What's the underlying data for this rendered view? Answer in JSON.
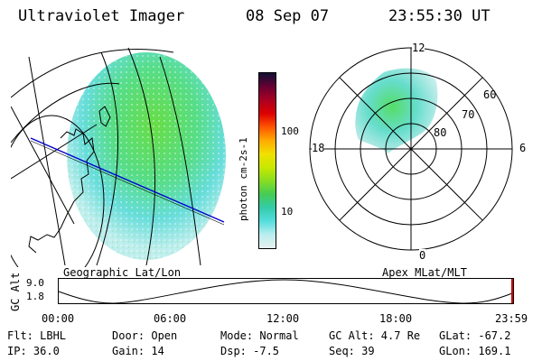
{
  "header": {
    "title": "Ultraviolet Imager",
    "date": "08 Sep 07",
    "time": "23:55:30 UT"
  },
  "geographic_panel": {
    "label": "Geographic Lat/Lon"
  },
  "polar_panel": {
    "label": "Apex MLat/MLT",
    "mlt_labels": {
      "top": "12",
      "left": "18",
      "right": "6",
      "bottom": "0"
    },
    "mlat_labels": [
      "60",
      "70",
      "80"
    ]
  },
  "colorbar": {
    "unit": "photon cm-2s-1",
    "ticks": [
      "100",
      "10"
    ],
    "colors": [
      "#111133",
      "#660033",
      "#aa0022",
      "#dd0000",
      "#ff5500",
      "#ffaa00",
      "#f0e000",
      "#c8e800",
      "#88dd22",
      "#44cc55",
      "#33ccaa",
      "#55dddd",
      "#bbeeee",
      "#e8f0f0"
    ]
  },
  "altitude_plot": {
    "ylabel": "GC Alt",
    "yticks": [
      "9.0",
      "1.8"
    ],
    "xticks": [
      "00:00",
      "06:00",
      "12:00",
      "18:00",
      "23:59"
    ],
    "marker_color": "#cc0000"
  },
  "footer": {
    "flt": "Flt: LBHL",
    "door": "Door: Open",
    "mode": "Mode: Normal",
    "gc_alt": "GC Alt: 4.7 Re",
    "glat": "GLat: -67.2",
    "ip": "IP: 36.0",
    "gain": "Gain: 14",
    "dsp": "Dsp:   -7.5",
    "seq": "Seq: 39",
    "glon": "GLon: 169.1"
  }
}
